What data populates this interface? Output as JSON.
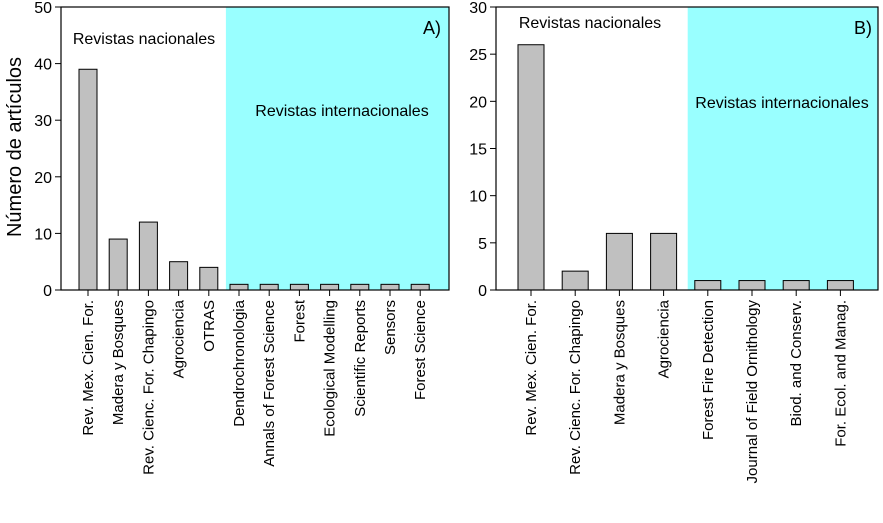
{
  "chart_data": [
    {
      "type": "bar",
      "panel_label": "A)",
      "ylabel": "Número de artículos",
      "ylim": [
        0,
        50
      ],
      "yticks": [
        0,
        10,
        20,
        30,
        40,
        50
      ],
      "categories": [
        "Rev. Mex. Cien. For.",
        "Madera y Bosques",
        "Rev. Cienc. For. Chapingo",
        "Agrociencia",
        "OTRAS",
        "Dendrochronologia",
        "Annals of Forest Science",
        "Forest",
        "Ecological Modelling",
        "Scientific Reports",
        "Sensors",
        "Forest Science"
      ],
      "values": [
        39,
        9,
        12,
        5,
        4,
        1,
        1,
        1,
        1,
        1,
        1,
        1
      ],
      "national_label": "Revistas nacionales",
      "international_label": "Revistas internacionales",
      "international_start_index": 5,
      "bar_color": "#c0c0c0",
      "international_bg": "#99ffff"
    },
    {
      "type": "bar",
      "panel_label": "B)",
      "ylim": [
        0,
        30
      ],
      "yticks": [
        0,
        5,
        10,
        15,
        20,
        25,
        30
      ],
      "categories": [
        "Rev. Mex. Cien. For.",
        "Rev. Cienc. For. Chapingo",
        "Madera y Bosques",
        "Agrociencia",
        "Forest Fire Detection",
        "Journal of Field Ornithology",
        "Biod. and Conserv.",
        "For. Ecol. and Manag."
      ],
      "values": [
        26,
        2,
        6,
        6,
        1,
        1,
        1,
        1
      ],
      "national_label": "Revistas nacionales",
      "international_label": "Revistas internacionales",
      "international_start_index": 4,
      "bar_color": "#c0c0c0",
      "international_bg": "#99ffff"
    }
  ]
}
